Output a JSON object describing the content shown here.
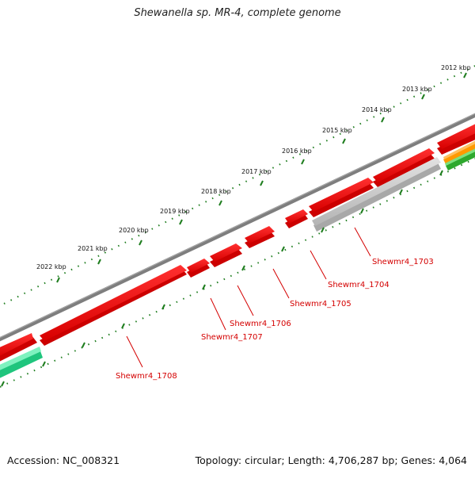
{
  "title": "Shewanella sp. MR-4, complete genome",
  "accession": "Accession: NC_008321",
  "summary": "Topology: circular; Length: 4,706,287 bp; Genes: 4,064",
  "colors": {
    "backbone": "#7a7a7a",
    "gene_forward": "#ee0000",
    "gene_other": "#c8c8c8",
    "scale_tick": "#1e7d1e",
    "label": "#d40000",
    "track_green": "#33d690",
    "track_orange": "#ff9900"
  },
  "ticks": [
    {
      "label": "2012 kbp"
    },
    {
      "label": "2013 kbp"
    },
    {
      "label": "2014 kbp"
    },
    {
      "label": "2015 kbp"
    },
    {
      "label": "2016 kbp"
    },
    {
      "label": "2017 kbp"
    },
    {
      "label": "2018 kbp"
    },
    {
      "label": "2019 kbp"
    },
    {
      "label": "2020 kbp"
    },
    {
      "label": "2021 kbp"
    },
    {
      "label": "2022 kbp"
    }
  ],
  "genes": [
    {
      "label": "Shewmr4_1703"
    },
    {
      "label": "Shewmr4_1704"
    },
    {
      "label": "Shewmr4_1705"
    },
    {
      "label": "Shewmr4_1706"
    },
    {
      "label": "Shewmr4_1707"
    },
    {
      "label": "Shewmr4_1708"
    }
  ]
}
